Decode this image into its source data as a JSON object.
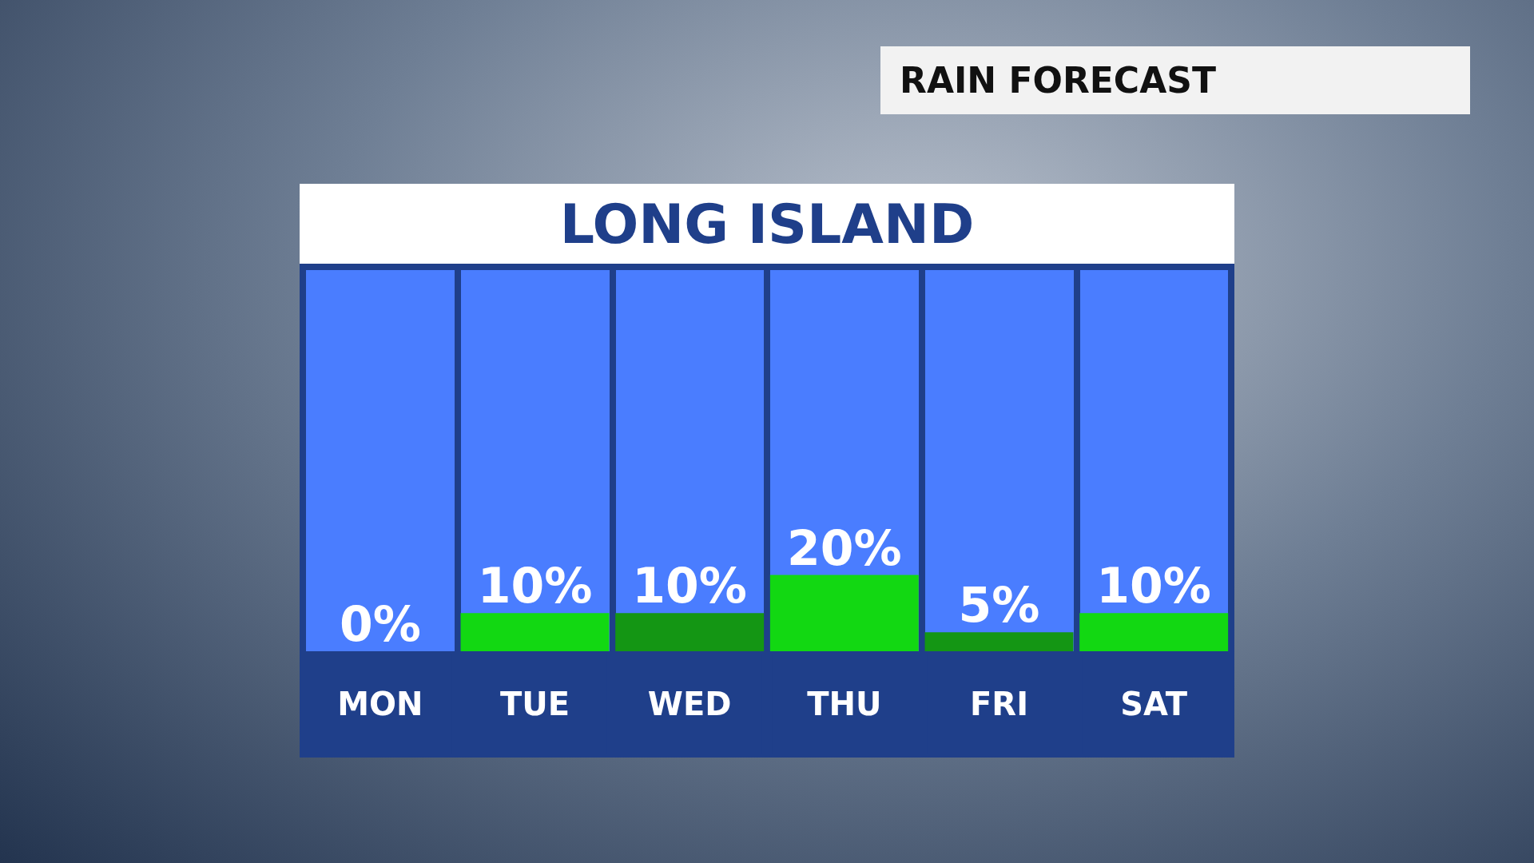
{
  "chart_data": {
    "type": "bar",
    "title": "RAIN FORECAST",
    "subtitle": "LONG ISLAND",
    "categories": [
      "MON",
      "TUE",
      "WED",
      "THU",
      "FRI",
      "SAT"
    ],
    "values": [
      0,
      10,
      10,
      20,
      5,
      10
    ],
    "colors": [
      "#ffffff",
      "#12d812",
      "#149614",
      "#12d812",
      "#149614",
      "#12d812"
    ],
    "value_labels": [
      "0%",
      "10%",
      "10%",
      "20%",
      "5%",
      "10%"
    ],
    "ylim": [
      0,
      100
    ],
    "tick_labels": "x",
    "grid": "x"
  }
}
